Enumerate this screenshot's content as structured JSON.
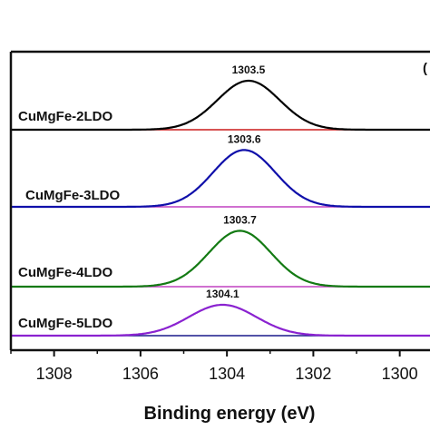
{
  "chart_data": {
    "type": "line",
    "title": "",
    "xlabel": "Binding energy (eV)",
    "ylabel": "",
    "xlim": [
      1309,
      1299.3
    ],
    "x_reversed": true,
    "x_ticks": [
      1308,
      1306,
      1304,
      1302,
      1300
    ],
    "x_tick_labels": [
      "1308",
      "1306",
      "1304",
      "1302",
      "1300"
    ],
    "panel_label_partial": "(",
    "series": [
      {
        "name": "CuMgFe-2LDO",
        "color": "#000000",
        "baseline_color": "#cc1a1a",
        "peak_x": 1303.5,
        "peak_label": "1303.5",
        "relative_height": 1.0,
        "width_sigma": 0.72
      },
      {
        "name": "CuMgFe-3LDO",
        "color": "#1010aa",
        "baseline_color": "#c040c0",
        "peak_x": 1303.6,
        "peak_label": "1303.6",
        "relative_height": 1.16,
        "width_sigma": 0.72
      },
      {
        "name": "CuMgFe-4LDO",
        "color": "#137a13",
        "baseline_color": "#c040c0",
        "peak_x": 1303.7,
        "peak_label": "1303.7",
        "relative_height": 1.14,
        "width_sigma": 0.72
      },
      {
        "name": "CuMgFe-5LDO",
        "color": "#8a22d0",
        "baseline_color": "#1a1a8c",
        "peak_x": 1304.1,
        "peak_label": "1304.1",
        "relative_height": 0.63,
        "width_sigma": 0.78
      }
    ]
  }
}
